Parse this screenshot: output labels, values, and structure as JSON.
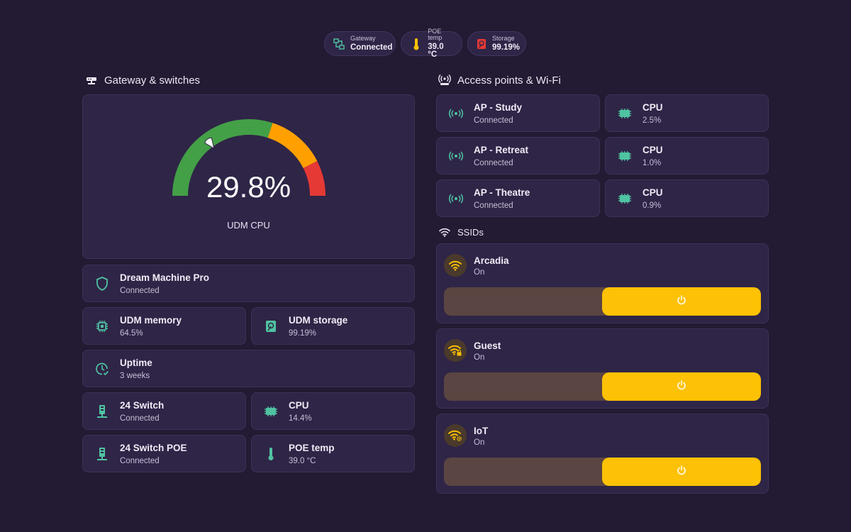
{
  "colors": {
    "background": "#231a33",
    "card": "#2f2547",
    "accent_teal": "#4fc3a1",
    "accent_yellow": "#fdc105",
    "gauge_green": "#43a047",
    "gauge_orange": "#ffa000",
    "gauge_red": "#e53935"
  },
  "chips": [
    {
      "icon": "lan-icon",
      "label": "Gateway",
      "value": "Connected"
    },
    {
      "icon": "thermometer-icon",
      "label": "POE temp",
      "value": "39.0 °C"
    },
    {
      "icon": "harddisk-icon",
      "label": "Storage",
      "value": "99.19%"
    }
  ],
  "gateway": {
    "title": "Gateway & switches",
    "gauge": {
      "value": "29.8%",
      "level": 29.8,
      "label": "UDM CPU"
    },
    "tiles": [
      {
        "icon": "shield-icon",
        "name": "Dream Machine Pro",
        "state": "Connected"
      },
      {
        "icon": "memory-icon",
        "name": "UDM memory",
        "state": "64.5%"
      },
      {
        "icon": "harddisk-icon",
        "name": "UDM storage",
        "state": "99.19%"
      },
      {
        "icon": "clock-check-icon",
        "name": "Uptime",
        "state": "3 weeks"
      },
      {
        "icon": "switch-icon",
        "name": "24 Switch",
        "state": "Connected"
      },
      {
        "icon": "cpu-icon",
        "name": "CPU",
        "state": "14.4%"
      },
      {
        "icon": "switch-icon",
        "name": "24 Switch POE",
        "state": "Connected"
      },
      {
        "icon": "thermometer-icon",
        "name": "POE temp",
        "state": "39.0 °C"
      }
    ]
  },
  "access_points": {
    "title": "Access points & Wi-Fi",
    "aps": [
      {
        "icon": "access-point-icon",
        "name": "AP - Study",
        "state": "Connected",
        "cpu_label": "CPU",
        "cpu": "2.5%"
      },
      {
        "icon": "access-point-icon",
        "name": "AP - Retreat",
        "state": "Connected",
        "cpu_label": "CPU",
        "cpu": "1.0%"
      },
      {
        "icon": "access-point-icon",
        "name": "AP - Theatre",
        "state": "Connected",
        "cpu_label": "CPU",
        "cpu": "0.9%"
      }
    ]
  },
  "ssids": {
    "title": "SSIDs",
    "items": [
      {
        "icon": "wifi-icon",
        "name": "Arcadia",
        "state": "On",
        "enabled": true
      },
      {
        "icon": "wifi-lock-icon",
        "name": "Guest",
        "state": "On",
        "enabled": true
      },
      {
        "icon": "wifi-cog-icon",
        "name": "IoT",
        "state": "On",
        "enabled": true
      }
    ]
  }
}
